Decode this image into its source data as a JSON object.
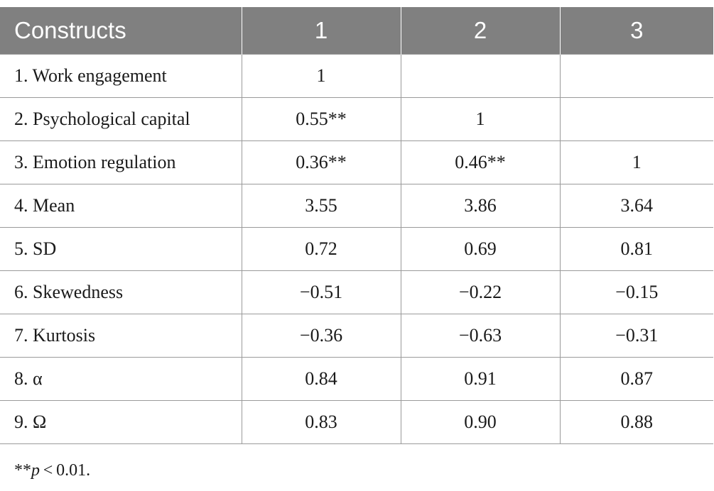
{
  "table": {
    "headers": [
      "Constructs",
      "1",
      "2",
      "3"
    ],
    "rows": [
      [
        "1. Work engagement",
        "1",
        "",
        ""
      ],
      [
        "2. Psychological capital",
        "0.55**",
        "1",
        ""
      ],
      [
        "3. Emotion regulation",
        "0.36**",
        "0.46**",
        "1"
      ],
      [
        "4. Mean",
        "3.55",
        "3.86",
        "3.64"
      ],
      [
        "5. SD",
        "0.72",
        "0.69",
        "0.81"
      ],
      [
        "6. Skewedness",
        "−0.51",
        "−0.22",
        "−0.15"
      ],
      [
        "7. Kurtosis",
        "−0.36",
        "−0.63",
        "−0.31"
      ],
      [
        "8. α",
        "0.84",
        "0.91",
        "0.87"
      ],
      [
        "9. Ω",
        "0.83",
        "0.90",
        "0.88"
      ]
    ]
  },
  "note": {
    "stars": "**",
    "p": "p",
    "rest": " < 0.01."
  }
}
